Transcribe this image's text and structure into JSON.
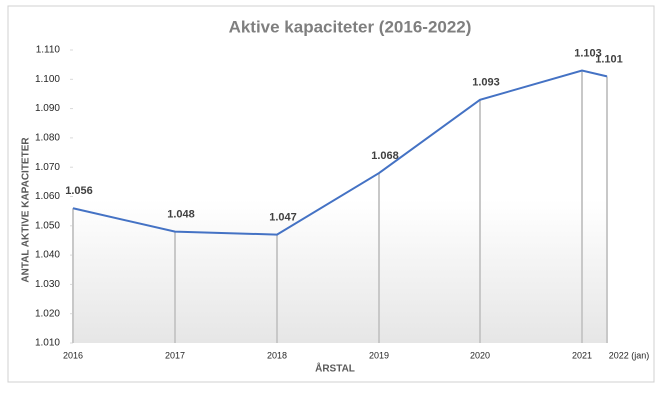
{
  "chart_data": {
    "type": "line",
    "title": "Aktive kapaciteter (2016-2022)",
    "x_label": "ÅRSTAL",
    "y_label": "ANTAL AKTIVE KAPACITETER",
    "categories": [
      "2016",
      "2017",
      "2018",
      "2019",
      "2020",
      "2021",
      "2022 (jan)"
    ],
    "series": [
      {
        "color": "#4472c4",
        "values": [
          1056,
          1048,
          1047,
          1068,
          1093,
          1103,
          1101
        ],
        "value_labels": [
          "1.056",
          "1.048",
          "1.047",
          "1.068",
          "1.093",
          "1.103",
          "1.101"
        ]
      }
    ],
    "ylim": [
      1010,
      1110
    ],
    "yticks": [
      {
        "value": 1010,
        "label": "1.010"
      },
      {
        "value": 1020,
        "label": "1.020"
      },
      {
        "value": 1030,
        "label": "1.030"
      },
      {
        "value": 1040,
        "label": "1.040"
      },
      {
        "value": 1050,
        "label": "1.050"
      },
      {
        "value": 1060,
        "label": "1.060"
      },
      {
        "value": 1070,
        "label": "1.070"
      },
      {
        "value": 1080,
        "label": "1.080"
      },
      {
        "value": 1090,
        "label": "1.090"
      },
      {
        "value": 1100,
        "label": "1.100"
      },
      {
        "value": 1110,
        "label": "1.110"
      }
    ],
    "drop_lines": true
  }
}
